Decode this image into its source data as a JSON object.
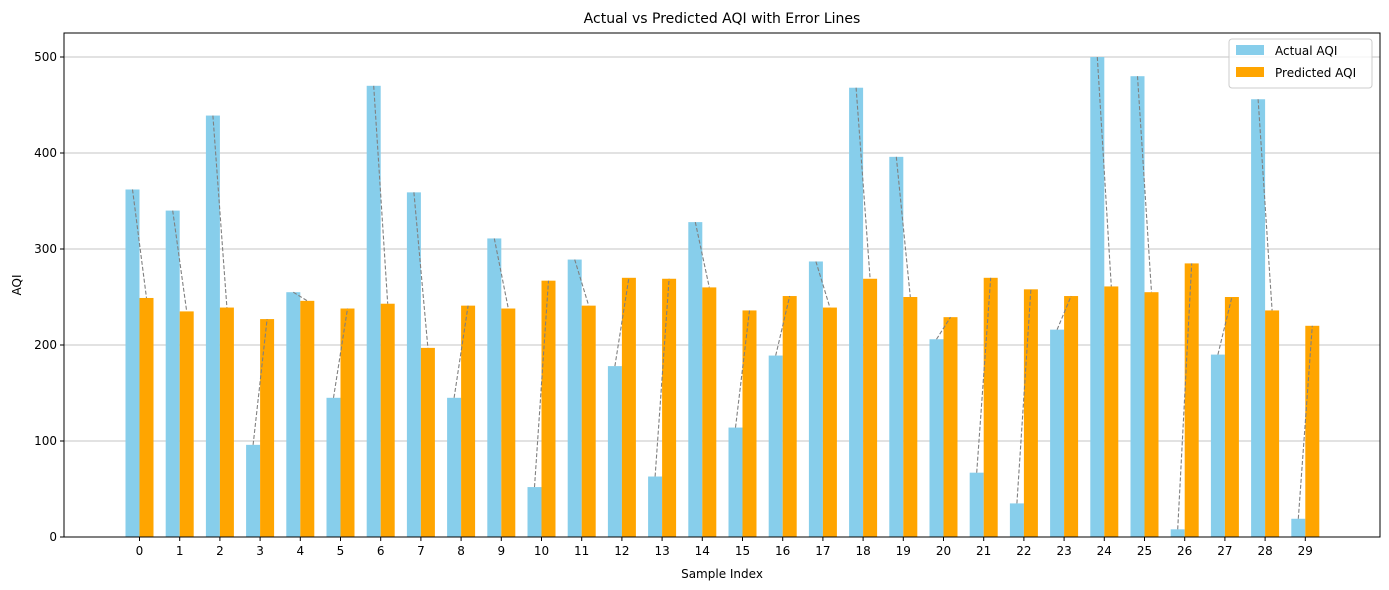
{
  "chart_data": {
    "type": "bar",
    "title": "Actual vs Predicted AQI with Error Lines",
    "xlabel": "Sample Index",
    "ylabel": "AQI",
    "ylim": [
      0,
      525
    ],
    "yticks": [
      0,
      100,
      200,
      300,
      400,
      500
    ],
    "grid": "y",
    "legend_position": "top-right",
    "categories": [
      "0",
      "1",
      "2",
      "3",
      "4",
      "5",
      "6",
      "7",
      "8",
      "9",
      "10",
      "11",
      "12",
      "13",
      "14",
      "15",
      "16",
      "17",
      "18",
      "19",
      "20",
      "21",
      "22",
      "23",
      "24",
      "25",
      "26",
      "27",
      "28",
      "29"
    ],
    "series": [
      {
        "name": "Actual AQI",
        "color": "#87ceeb",
        "values": [
          362,
          340,
          439,
          96,
          255,
          145,
          470,
          359,
          145,
          311,
          52,
          289,
          178,
          63,
          328,
          114,
          189,
          287,
          468,
          396,
          206,
          67,
          35,
          216,
          500,
          480,
          8,
          190,
          456,
          19
        ]
      },
      {
        "name": "Predicted AQI",
        "color": "#ffa500",
        "values": [
          249,
          235,
          239,
          227,
          246,
          238,
          243,
          197,
          241,
          238,
          267,
          241,
          270,
          269,
          260,
          236,
          251,
          239,
          269,
          250,
          229,
          270,
          258,
          251,
          261,
          255,
          285,
          250,
          236,
          220
        ]
      }
    ],
    "error_line_color": "#808080"
  }
}
